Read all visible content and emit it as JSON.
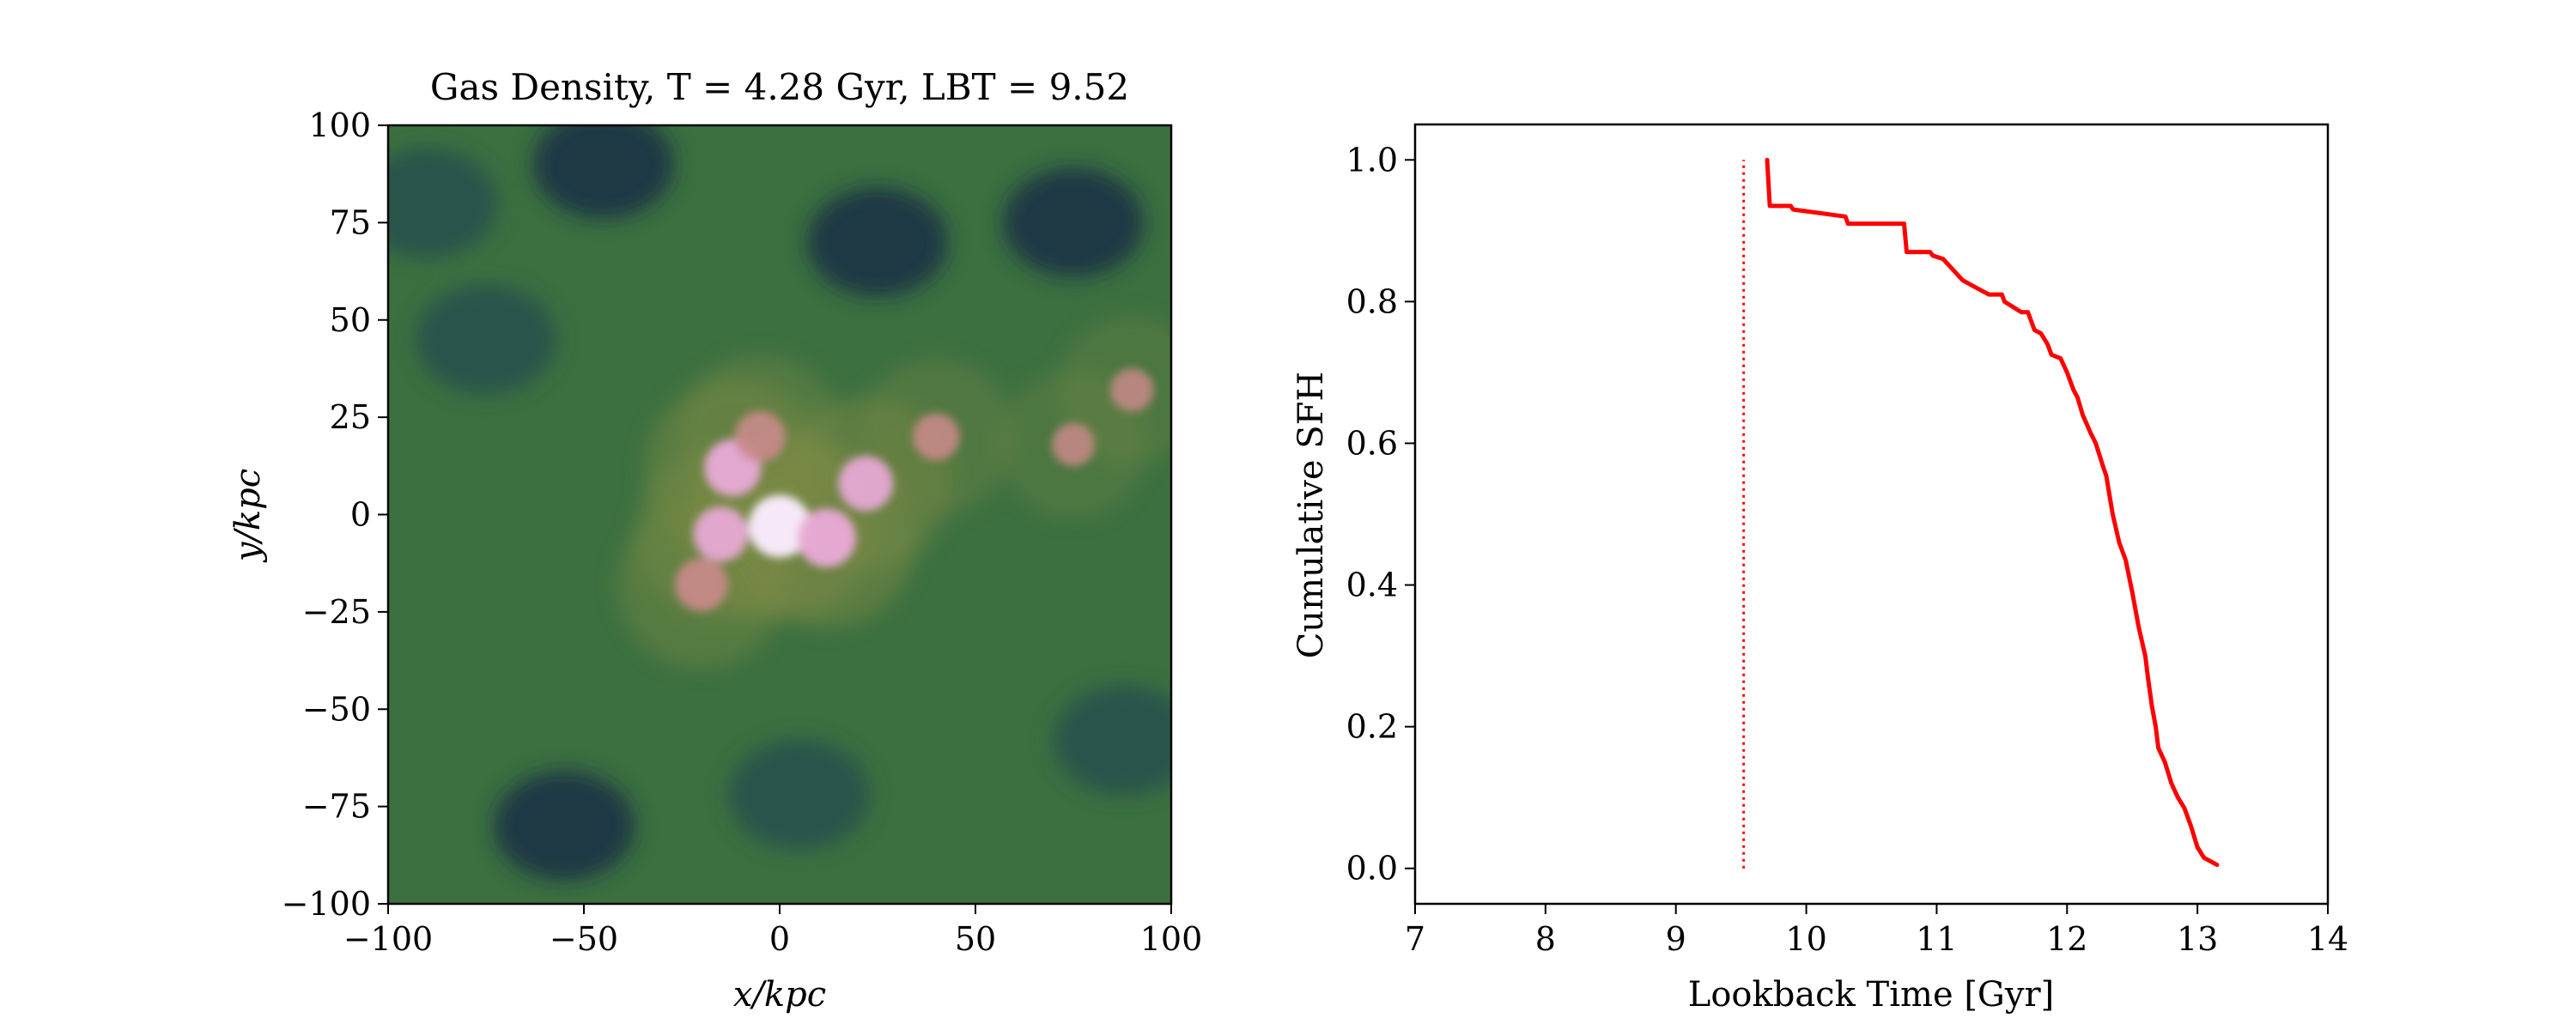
{
  "chart_data": [
    {
      "type": "heatmap",
      "title": "Gas Density, T = 4.28 Gyr, LBT = 9.52",
      "xlabel": "x/kpc",
      "ylabel": "y/kpc",
      "xlim": [
        -100,
        100
      ],
      "ylim": [
        -100,
        100
      ],
      "xticks": [
        -100,
        -50,
        0,
        50,
        100
      ],
      "yticks": [
        -100,
        -75,
        -50,
        -25,
        0,
        25,
        50,
        75,
        100
      ],
      "xtick_labels": [
        "−100",
        "−50",
        "0",
        "50",
        "100"
      ],
      "ytick_labels": [
        "−100",
        "−75",
        "−50",
        "−25",
        "0",
        "25",
        "50",
        "75",
        "100"
      ],
      "colormap": [
        "#1b2e45",
        "#244f4c",
        "#3f7a3e",
        "#7b8a45",
        "#c98a8a",
        "#e8a9d6",
        "#f6e8f8"
      ],
      "dense_regions": [
        {
          "x": -12,
          "y": 12,
          "level": 0.85
        },
        {
          "x": 0,
          "y": -3,
          "level": 1.0
        },
        {
          "x": 12,
          "y": -6,
          "level": 0.9
        },
        {
          "x": 22,
          "y": 8,
          "level": 0.8
        },
        {
          "x": -20,
          "y": -18,
          "level": 0.75
        },
        {
          "x": -15,
          "y": -5,
          "level": 0.8
        },
        {
          "x": 40,
          "y": 20,
          "level": 0.6
        },
        {
          "x": 75,
          "y": 18,
          "level": 0.5
        },
        {
          "x": 90,
          "y": 32,
          "level": 0.5
        },
        {
          "x": -5,
          "y": 20,
          "level": 0.7
        }
      ],
      "voids": [
        {
          "x": -90,
          "y": 80
        },
        {
          "x": -45,
          "y": 90
        },
        {
          "x": -75,
          "y": 45
        },
        {
          "x": 25,
          "y": 70
        },
        {
          "x": 88,
          "y": -58
        },
        {
          "x": -55,
          "y": -80
        },
        {
          "x": 5,
          "y": -72
        },
        {
          "x": 75,
          "y": 75
        }
      ]
    },
    {
      "type": "line",
      "xlabel": "Lookback Time [Gyr]",
      "ylabel": "Cumulative SFH",
      "xlim": [
        7,
        14
      ],
      "ylim": [
        -0.05,
        1.05
      ],
      "xticks": [
        7,
        8,
        9,
        10,
        11,
        12,
        13,
        14
      ],
      "yticks": [
        0.0,
        0.2,
        0.4,
        0.6,
        0.8,
        1.0
      ],
      "xtick_labels": [
        "7",
        "8",
        "9",
        "10",
        "11",
        "12",
        "13",
        "14"
      ],
      "ytick_labels": [
        "0.0",
        "0.2",
        "0.4",
        "0.6",
        "0.8",
        "1.0"
      ],
      "vline": {
        "x": 9.52,
        "ymin": 0.0,
        "ymax": 1.0,
        "color": "#ff0000",
        "style": "dotted"
      },
      "series": [
        {
          "color": "#ff0000",
          "x": [
            9.7,
            9.72,
            9.88,
            9.9,
            10.1,
            10.3,
            10.32,
            10.75,
            10.77,
            10.95,
            10.97,
            11.05,
            11.1,
            11.15,
            11.2,
            11.3,
            11.4,
            11.5,
            11.52,
            11.65,
            11.7,
            11.75,
            11.8,
            11.85,
            11.88,
            11.95,
            12.0,
            12.05,
            12.08,
            12.12,
            12.18,
            12.22,
            12.28,
            12.3,
            12.35,
            12.4,
            12.45,
            12.5,
            12.55,
            12.6,
            12.62,
            12.65,
            12.68,
            12.7,
            12.75,
            12.8,
            12.85,
            12.9,
            12.95,
            13.0,
            13.05,
            13.15
          ],
          "y": [
            1.0,
            0.935,
            0.935,
            0.93,
            0.925,
            0.92,
            0.91,
            0.91,
            0.87,
            0.87,
            0.865,
            0.86,
            0.85,
            0.84,
            0.83,
            0.82,
            0.81,
            0.81,
            0.8,
            0.785,
            0.785,
            0.76,
            0.755,
            0.74,
            0.725,
            0.72,
            0.7,
            0.675,
            0.665,
            0.64,
            0.615,
            0.6,
            0.565,
            0.555,
            0.5,
            0.46,
            0.435,
            0.39,
            0.34,
            0.3,
            0.27,
            0.23,
            0.2,
            0.17,
            0.15,
            0.12,
            0.1,
            0.085,
            0.06,
            0.03,
            0.015,
            0.005
          ]
        }
      ]
    }
  ]
}
